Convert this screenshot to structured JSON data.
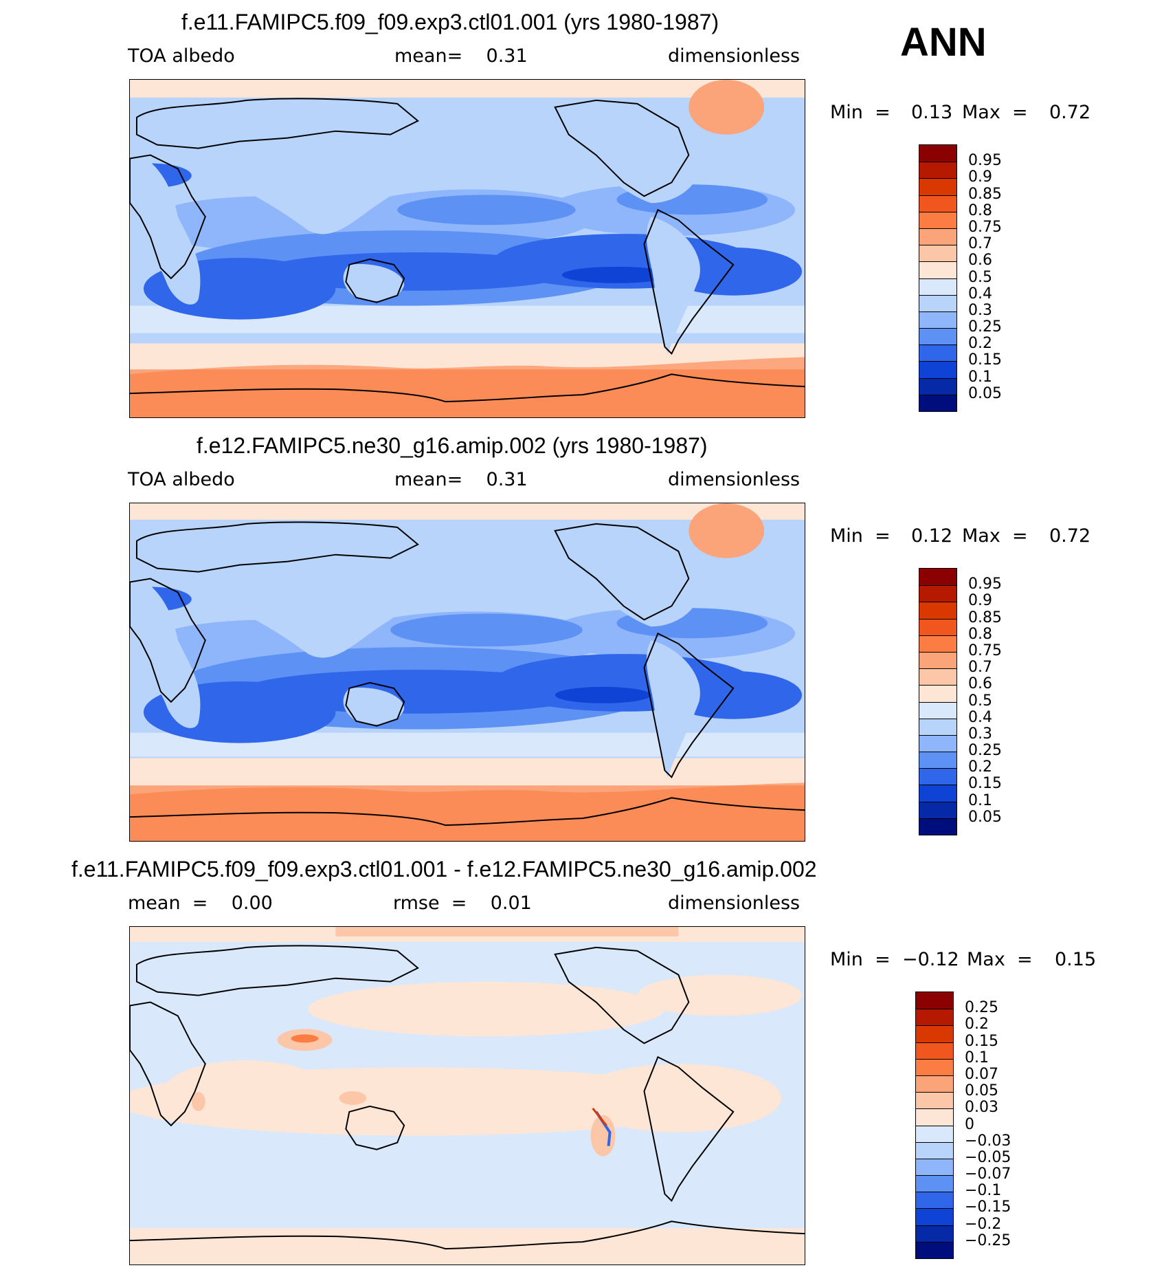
{
  "season": "ANN",
  "panels": [
    {
      "title": "f.e11.FAMIPC5.f09_f09.exp3.ctl01.001 (yrs 1980-1987)",
      "left_label": "TOA albedo",
      "center_label": "mean=    0.31",
      "right_label": "dimensionless",
      "min_label": "Min  =",
      "min_value": "0.13",
      "max_label": "Max  =",
      "max_value": "0.72",
      "colorbar": {
        "levels": [
          "0.95",
          "0.9",
          "0.85",
          "0.8",
          "0.75",
          "0.7",
          "0.6",
          "0.5",
          "0.4",
          "0.3",
          "0.25",
          "0.2",
          "0.15",
          "0.1",
          "0.05"
        ],
        "colors": [
          "#8b0000",
          "#b51a00",
          "#d93800",
          "#f0561d",
          "#fb7d43",
          "#fba379",
          "#fcc7a9",
          "#fde6d6",
          "#d9e8fb",
          "#b8d4fb",
          "#8fb6fa",
          "#5d91f3",
          "#2f66ea",
          "#0f43d6",
          "#0629a8",
          "#000d7c"
        ]
      }
    },
    {
      "title": "f.e12.FAMIPC5.ne30_g16.amip.002 (yrs 1980-1987)",
      "left_label": "TOA albedo",
      "center_label": "mean=    0.31",
      "right_label": "dimensionless",
      "min_label": "Min  =",
      "min_value": "0.12",
      "max_label": "Max  =",
      "max_value": "0.72",
      "colorbar": {
        "levels": [
          "0.95",
          "0.9",
          "0.85",
          "0.8",
          "0.75",
          "0.7",
          "0.6",
          "0.5",
          "0.4",
          "0.3",
          "0.25",
          "0.2",
          "0.15",
          "0.1",
          "0.05"
        ],
        "colors": [
          "#8b0000",
          "#b51a00",
          "#d93800",
          "#f0561d",
          "#fb7d43",
          "#fba379",
          "#fcc7a9",
          "#fde6d6",
          "#d9e8fb",
          "#b8d4fb",
          "#8fb6fa",
          "#5d91f3",
          "#2f66ea",
          "#0f43d6",
          "#0629a8",
          "#000d7c"
        ]
      }
    },
    {
      "title": "f.e11.FAMIPC5.f09_f09.exp3.ctl01.001 - f.e12.FAMIPC5.ne30_g16.amip.002",
      "left_label": "mean  =    0.00",
      "center_label": "rmse  =    0.01",
      "right_label": "dimensionless",
      "min_label": "Min  =",
      "min_value": "−0.12",
      "max_label": "Max  =",
      "max_value": "0.15",
      "colorbar": {
        "levels": [
          "0.25",
          "0.2",
          "0.15",
          "0.1",
          "0.07",
          "0.05",
          "0.03",
          "0",
          "−0.03",
          "−0.05",
          "−0.07",
          "−0.1",
          "−0.15",
          "−0.2",
          "−0.25"
        ],
        "colors": [
          "#8b0000",
          "#b51a00",
          "#d93800",
          "#f0561d",
          "#fb7d43",
          "#fba379",
          "#fcc7a9",
          "#fde6d6",
          "#d9e8fb",
          "#b8d4fb",
          "#8fb6fa",
          "#5d91f3",
          "#2f66ea",
          "#0f43d6",
          "#0629a8",
          "#000d7c"
        ]
      }
    }
  ]
}
